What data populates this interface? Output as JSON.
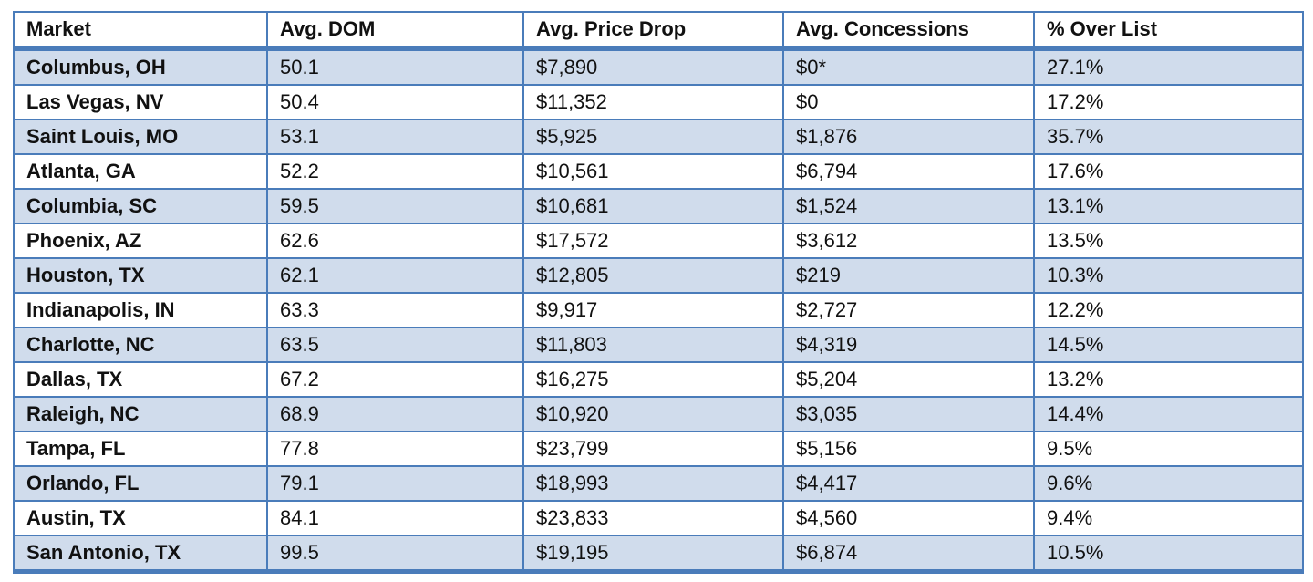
{
  "chart_data": {
    "type": "table",
    "columns": [
      "Market",
      "Avg. DOM",
      "Avg. Price Drop",
      "Avg. Concessions",
      "% Over List"
    ],
    "rows": [
      [
        "Columbus, OH",
        "50.1",
        "$7,890",
        "$0*",
        "27.1%"
      ],
      [
        "Las Vegas, NV",
        "50.4",
        "$11,352",
        "$0",
        "17.2%"
      ],
      [
        "Saint Louis, MO",
        "53.1",
        "$5,925",
        "$1,876",
        "35.7%"
      ],
      [
        "Atlanta, GA",
        "52.2",
        "$10,561",
        "$6,794",
        "17.6%"
      ],
      [
        "Columbia, SC",
        "59.5",
        "$10,681",
        "$1,524",
        "13.1%"
      ],
      [
        "Phoenix, AZ",
        "62.6",
        "$17,572",
        "$3,612",
        "13.5%"
      ],
      [
        "Houston, TX",
        "62.1",
        "$12,805",
        "$219",
        "10.3%"
      ],
      [
        "Indianapolis, IN",
        "63.3",
        "$9,917",
        "$2,727",
        "12.2%"
      ],
      [
        "Charlotte, NC",
        "63.5",
        "$11,803",
        "$4,319",
        "14.5%"
      ],
      [
        "Dallas, TX",
        "67.2",
        "$16,275",
        "$5,204",
        "13.2%"
      ],
      [
        "Raleigh, NC",
        "68.9",
        "$10,920",
        "$3,035",
        "14.4%"
      ],
      [
        "Tampa, FL",
        "77.8",
        "$23,799",
        "$5,156",
        "9.5%"
      ],
      [
        "Orlando, FL",
        "79.1",
        "$18,993",
        "$4,417",
        "9.6%"
      ],
      [
        "Austin, TX",
        "84.1",
        "$23,833",
        "$4,560",
        "9.4%"
      ],
      [
        "San Antonio, TX",
        "99.5",
        "$19,195",
        "$6,874",
        "10.5%"
      ]
    ],
    "layout": {
      "grid": "on",
      "alternating_row_shading": "odd rows shaded light blue starting with first data row",
      "header_style": "bold, white background, thick bottom border"
    }
  },
  "colors": {
    "accent_border": "#4a7cba",
    "alt_row_fill": "#d0dcec",
    "header_fill": "#ffffff",
    "text": "#111111",
    "page_background": "#ffffff"
  }
}
